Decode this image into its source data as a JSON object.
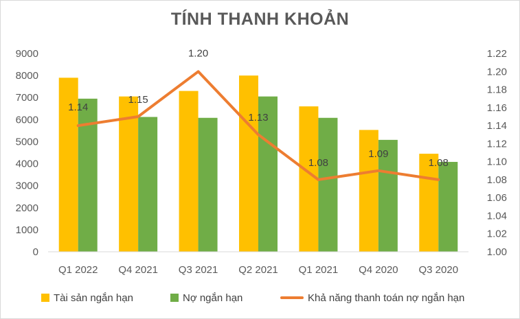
{
  "chart_data": {
    "type": "bar",
    "title": "TÍNH THANH KHOẢN",
    "categories": [
      "Q1 2022",
      "Q4 2021",
      "Q3 2021",
      "Q2 2021",
      "Q1 2021",
      "Q4 2020",
      "Q3 2020"
    ],
    "series": [
      {
        "name": "Tài sản ngắn hạn",
        "type": "bar",
        "axis": "left",
        "color": "#FFC000",
        "values": [
          7900,
          7050,
          7300,
          8000,
          6600,
          5530,
          4450
        ]
      },
      {
        "name": "Nợ ngắn hạn",
        "type": "bar",
        "axis": "left",
        "color": "#70AD47",
        "values": [
          6950,
          6120,
          6080,
          7050,
          6080,
          5080,
          4080
        ]
      },
      {
        "name": "Khả năng thanh toán nợ ngắn hạn",
        "type": "line",
        "axis": "right",
        "color": "#ED7D31",
        "values": [
          1.14,
          1.15,
          1.2,
          1.13,
          1.08,
          1.09,
          1.08
        ],
        "labels": [
          "1.14",
          "1.15",
          "1.20",
          "1.13",
          "1.08",
          "1.09",
          "1.08"
        ]
      }
    ],
    "y_left": {
      "ylim": [
        0,
        9000
      ],
      "ticks": [
        "0",
        "1000",
        "2000",
        "3000",
        "4000",
        "5000",
        "6000",
        "7000",
        "8000",
        "9000"
      ]
    },
    "y_right": {
      "ylim": [
        1.0,
        1.22
      ],
      "ticks": [
        "1.00",
        "1.02",
        "1.04",
        "1.06",
        "1.08",
        "1.10",
        "1.12",
        "1.14",
        "1.16",
        "1.18",
        "1.20",
        "1.22"
      ]
    },
    "grid": false,
    "legend": "bottom"
  }
}
